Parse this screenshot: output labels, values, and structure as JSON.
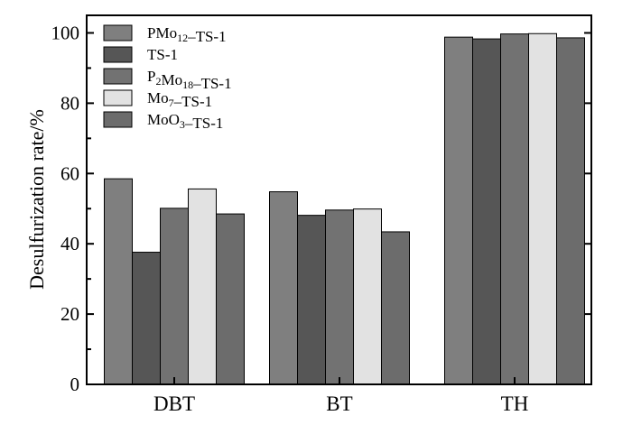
{
  "chart_data": {
    "type": "bar",
    "title": "",
    "xlabel": "",
    "ylabel": "Desulfurization rate/%",
    "ylim": [
      0,
      105
    ],
    "yticks": [
      0,
      20,
      40,
      60,
      80,
      100
    ],
    "categories": [
      "DBT",
      "BT",
      "TH"
    ],
    "series": [
      {
        "name": "PMo12–TS-1",
        "label_parts": [
          [
            "PMo",
            ""
          ],
          [
            "12",
            "sub"
          ],
          [
            "–TS-1",
            ""
          ]
        ],
        "color": "#7f7f7f",
        "values": [
          58.5,
          54.8,
          98.8
        ]
      },
      {
        "name": "TS-1",
        "label_parts": [
          [
            "TS-1",
            ""
          ]
        ],
        "color": "#565656",
        "values": [
          37.6,
          48.1,
          98.3
        ]
      },
      {
        "name": "P2Mo18–TS-1",
        "label_parts": [
          [
            "P",
            ""
          ],
          [
            "2",
            "sub"
          ],
          [
            "Mo",
            ""
          ],
          [
            "18",
            "sub"
          ],
          [
            "–TS-1",
            ""
          ]
        ],
        "color": "#727272",
        "values": [
          50.1,
          49.6,
          99.7
        ]
      },
      {
        "name": "Mo7–TS-1",
        "label_parts": [
          [
            "Mo",
            ""
          ],
          [
            "7",
            "sub"
          ],
          [
            "–TS-1",
            ""
          ]
        ],
        "color": "#e2e2e2",
        "values": [
          55.6,
          49.9,
          99.8
        ]
      },
      {
        "name": "MoO3–TS-1",
        "label_parts": [
          [
            "MoO",
            ""
          ],
          [
            "3",
            "sub"
          ],
          [
            "–TS-1",
            ""
          ]
        ],
        "color": "#6c6c6c",
        "values": [
          48.5,
          43.4,
          98.6
        ]
      }
    ],
    "legend": "top-left",
    "grid": false
  }
}
